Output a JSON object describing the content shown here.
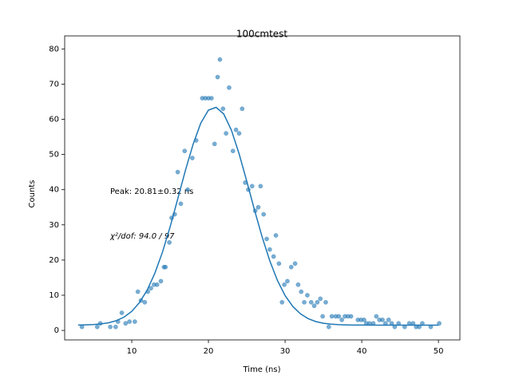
{
  "chart_data": {
    "type": "scatter",
    "title": "100cmtest",
    "x_label": "Time (ns)",
    "y_label": "Counts",
    "annotations": [
      "Peak: 20.81±0.32 ns",
      "χ²/dof: 94.0 / 97"
    ],
    "xlim": [
      1.25,
      52.8
    ],
    "ylim": [
      -2.7,
      83.7
    ],
    "xticks": [
      10,
      20,
      30,
      40,
      50
    ],
    "yticks": [
      0,
      10,
      20,
      30,
      40,
      50,
      60,
      70,
      80
    ],
    "series": [
      {
        "type": "scatter",
        "color": "#1f77b4",
        "x": [
          3.5,
          5.5,
          5.9,
          7.2,
          7.9,
          8.2,
          8.7,
          9.2,
          9.7,
          10.4,
          10.8,
          11.2,
          11.7,
          12.1,
          12.5,
          12.9,
          13.3,
          13.8,
          14.2,
          14.4,
          14.9,
          15.2,
          15.6,
          16.0,
          16.4,
          16.9,
          17.3,
          17.9,
          18.4,
          19.2,
          19.6,
          20.0,
          20.4,
          20.8,
          21.2,
          21.5,
          21.9,
          22.3,
          22.7,
          23.2,
          23.6,
          24.0,
          24.4,
          24.8,
          25.2,
          25.7,
          26.1,
          26.5,
          26.8,
          27.2,
          27.6,
          28.0,
          28.5,
          28.8,
          29.2,
          29.6,
          29.9,
          30.3,
          30.8,
          31.3,
          31.7,
          32.1,
          32.5,
          32.9,
          33.4,
          33.8,
          34.2,
          34.6,
          34.9,
          35.3,
          35.7,
          36.1,
          36.6,
          37.0,
          37.4,
          37.8,
          38.2,
          38.6,
          39.5,
          39.9,
          40.3,
          40.6,
          41.0,
          41.5,
          41.9,
          42.3,
          42.7,
          43.1,
          43.5,
          43.9,
          44.3,
          44.8,
          45.6,
          46.2,
          46.7,
          47.1,
          47.5,
          47.9,
          49.0,
          50.1
        ],
        "values": [
          1,
          1,
          2,
          1,
          1,
          2.5,
          5,
          2,
          2.5,
          2.5,
          11,
          8.5,
          8,
          11,
          12,
          13,
          13,
          14,
          18,
          18,
          25,
          32,
          33,
          45,
          36,
          51,
          40,
          49,
          54,
          66,
          66,
          66,
          66,
          53,
          72,
          77,
          63,
          56,
          69,
          51,
          57,
          56,
          63,
          42,
          40,
          41,
          34,
          35,
          41,
          33,
          26,
          23,
          21,
          27,
          19,
          8,
          13,
          14,
          18,
          19,
          13,
          11,
          8,
          10,
          8,
          7,
          8,
          9,
          4,
          8,
          1,
          4,
          4,
          4,
          3,
          4,
          4,
          4,
          3,
          3,
          3,
          2,
          2,
          2,
          4,
          3,
          3,
          2,
          3,
          2,
          1,
          2,
          1,
          2,
          2,
          1,
          1,
          2,
          1,
          2
        ]
      },
      {
        "type": "line",
        "color": "#1f77b4",
        "x": [
          3,
          4,
          5,
          6,
          7,
          8,
          9,
          10,
          11,
          12,
          13,
          14,
          15,
          16,
          17,
          18,
          19,
          20,
          21,
          22,
          23,
          24,
          25,
          26,
          27,
          28,
          29,
          30,
          31,
          32,
          33,
          34,
          35,
          36,
          37,
          38,
          39,
          40,
          42,
          44,
          46,
          48,
          50
        ],
        "values": [
          1.53,
          1.58,
          1.67,
          1.85,
          2.18,
          2.78,
          3.79,
          5.42,
          7.9,
          11.4,
          16.2,
          22.2,
          29.4,
          37.4,
          45.5,
          52.9,
          58.9,
          62.6,
          63.4,
          61.5,
          56.9,
          50.2,
          42.4,
          34.3,
          26.6,
          19.8,
          14.2,
          9.9,
          6.83,
          4.72,
          3.35,
          2.52,
          2.03,
          1.77,
          1.63,
          1.56,
          1.53,
          1.51,
          1.5,
          1.5,
          1.5,
          1.5,
          1.5
        ]
      }
    ]
  }
}
